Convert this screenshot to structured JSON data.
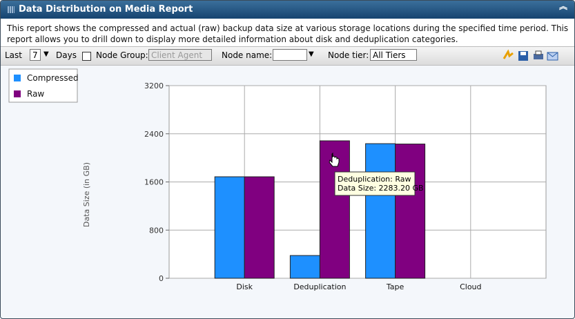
{
  "window": {
    "title": "Data Distribution on Media Report",
    "description": "This report shows the compressed and actual (raw) backup data size at various storage locations during the specified time period. This report allows you to drill down to display more detailed information about disk and deduplication categories."
  },
  "toolbar": {
    "last_label": "Last",
    "days_value": "7",
    "days_label": "Days",
    "node_group_label": "Node Group:",
    "node_group_value": "Client Agent",
    "node_name_label": "Node name:",
    "node_tier_label": "Node tier:",
    "node_tier_value": "All Tiers"
  },
  "chart_data": {
    "type": "bar",
    "y_label": "Data Size (in GB)",
    "categories": [
      "Disk",
      "Deduplication",
      "Tape",
      "Cloud"
    ],
    "series": [
      {
        "name": "Compressed",
        "color": "#1e90ff",
        "values": [
          1686,
          378,
          2236,
          0
        ]
      },
      {
        "name": "Raw",
        "color": "#800080",
        "values": [
          1686,
          2283.2,
          2230,
          0
        ]
      }
    ],
    "ylim": [
      0,
      3200
    ],
    "yticks": [
      0,
      800,
      1600,
      2400,
      3200
    ],
    "grid": true,
    "legend": "top-left",
    "tooltip": {
      "lines": [
        "Deduplication: Raw",
        "Data Size: 2283.20 GB"
      ]
    }
  }
}
